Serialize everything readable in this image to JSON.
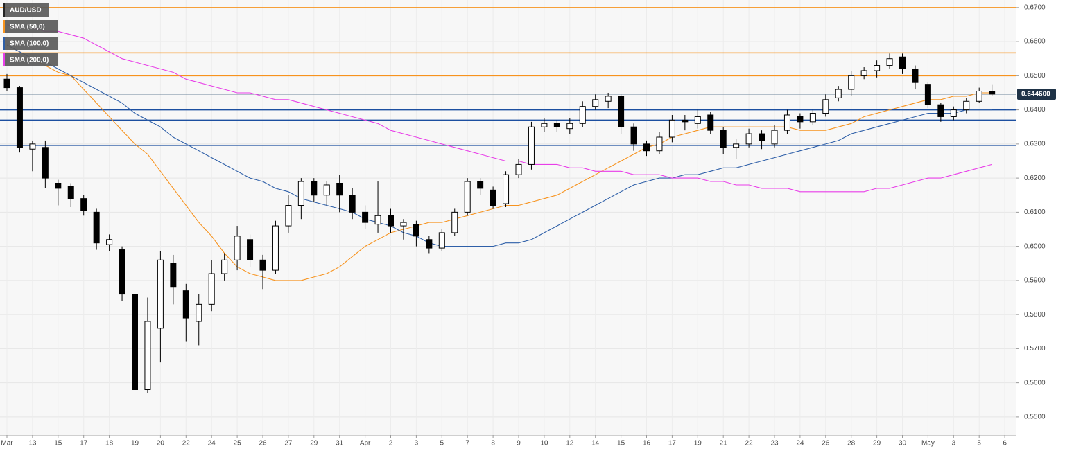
{
  "chart_data": {
    "type": "candlestick",
    "title": "AUD/USD",
    "categories": [
      "Mar",
      null,
      "13",
      null,
      "15",
      null,
      "17",
      null,
      "18",
      null,
      "19",
      null,
      "20",
      null,
      "22",
      null,
      "24",
      null,
      "25",
      null,
      "26",
      null,
      "27",
      null,
      "29",
      null,
      "31",
      null,
      "Apr",
      null,
      "2",
      null,
      "3",
      null,
      "5",
      null,
      "7",
      null,
      "8",
      null,
      "9",
      null,
      "10",
      null,
      "12",
      null,
      "14",
      null,
      "15",
      null,
      "16",
      null,
      "17",
      null,
      "19",
      null,
      "21",
      null,
      "22",
      null,
      "23",
      null,
      "24",
      null,
      "26",
      null,
      "28",
      null,
      "29",
      null,
      "30",
      null,
      "May",
      null,
      "3",
      null,
      "5",
      null,
      "6"
    ],
    "open": [
      0.649,
      0.6465,
      0.6285,
      0.629,
      0.6185,
      0.6175,
      0.614,
      0.61,
      0.6005,
      0.599,
      0.586,
      0.558,
      0.576,
      0.595,
      0.587,
      0.578,
      0.583,
      0.592,
      0.596,
      0.602,
      0.596,
      0.593,
      0.606,
      0.612,
      0.619,
      0.615,
      0.6185,
      0.615,
      0.61,
      0.6065,
      0.609,
      0.606,
      0.6065,
      0.602,
      0.5995,
      0.604,
      0.61,
      0.619,
      0.6165,
      0.6125,
      0.621,
      0.624,
      0.635,
      0.636,
      0.6345,
      0.636,
      0.641,
      0.6425,
      0.644,
      0.635,
      0.63,
      0.628,
      0.632,
      0.637,
      0.636,
      0.6385,
      0.634,
      0.629,
      0.63,
      0.633,
      0.63,
      0.634,
      0.638,
      0.6365,
      0.639,
      0.6435,
      0.646,
      0.65,
      0.6515,
      0.653,
      0.6555,
      0.652,
      0.6475,
      0.6415,
      0.638,
      0.64,
      0.6425,
      0.6455,
      null
    ],
    "high": [
      0.6505,
      0.647,
      0.631,
      0.631,
      0.6195,
      0.6185,
      0.615,
      0.611,
      0.6035,
      0.6,
      0.587,
      0.585,
      0.5985,
      0.5975,
      0.589,
      0.586,
      0.596,
      0.598,
      0.606,
      0.6035,
      0.5975,
      0.6075,
      0.615,
      0.62,
      0.62,
      0.619,
      0.621,
      0.617,
      0.612,
      0.619,
      0.611,
      0.608,
      0.6075,
      0.603,
      0.605,
      0.611,
      0.62,
      0.62,
      0.6175,
      0.622,
      0.6255,
      0.6365,
      0.6375,
      0.637,
      0.6375,
      0.6425,
      0.6445,
      0.645,
      0.6445,
      0.636,
      0.631,
      0.6335,
      0.6385,
      0.6385,
      0.64,
      0.6395,
      0.635,
      0.6315,
      0.6345,
      0.634,
      0.6355,
      0.64,
      0.639,
      0.64,
      0.6445,
      0.647,
      0.6515,
      0.6525,
      0.6545,
      0.6565,
      0.6565,
      0.653,
      0.648,
      0.642,
      0.641,
      0.6435,
      0.6465,
      0.6475,
      null
    ],
    "low": [
      0.6455,
      0.6275,
      0.622,
      0.617,
      0.612,
      0.6115,
      0.609,
      0.599,
      0.5985,
      0.584,
      0.551,
      0.557,
      0.566,
      0.583,
      0.572,
      0.571,
      0.581,
      0.59,
      0.593,
      0.594,
      0.5875,
      0.592,
      0.604,
      0.608,
      0.613,
      0.612,
      0.61,
      0.608,
      0.605,
      0.604,
      0.604,
      0.602,
      0.6,
      0.598,
      0.5985,
      0.603,
      0.609,
      0.615,
      0.611,
      0.6115,
      0.62,
      0.6225,
      0.6335,
      0.6335,
      0.633,
      0.635,
      0.64,
      0.6405,
      0.633,
      0.628,
      0.6265,
      0.627,
      0.6305,
      0.634,
      0.6345,
      0.633,
      0.627,
      0.6255,
      0.629,
      0.6285,
      0.629,
      0.633,
      0.6345,
      0.6355,
      0.638,
      0.6425,
      0.644,
      0.649,
      0.6495,
      0.652,
      0.6505,
      0.646,
      0.6405,
      0.6365,
      0.637,
      0.639,
      0.642,
      0.644,
      null
    ],
    "close": [
      0.6465,
      0.629,
      0.63,
      0.62,
      0.617,
      0.614,
      0.6105,
      0.601,
      0.602,
      0.586,
      0.558,
      0.578,
      0.596,
      0.588,
      0.579,
      0.583,
      0.592,
      0.596,
      0.603,
      0.596,
      0.593,
      0.606,
      0.612,
      0.619,
      0.615,
      0.618,
      0.615,
      0.61,
      0.607,
      0.609,
      0.606,
      0.607,
      0.603,
      0.5995,
      0.604,
      0.61,
      0.619,
      0.617,
      0.612,
      0.621,
      0.624,
      0.635,
      0.636,
      0.635,
      0.636,
      0.641,
      0.643,
      0.644,
      0.635,
      0.63,
      0.628,
      0.632,
      0.637,
      0.6365,
      0.638,
      0.634,
      0.629,
      0.63,
      0.633,
      0.631,
      0.634,
      0.6385,
      0.6365,
      0.639,
      0.643,
      0.646,
      0.65,
      0.6515,
      0.653,
      0.655,
      0.652,
      0.648,
      0.6415,
      0.638,
      0.64,
      0.6425,
      0.6455,
      0.6446,
      null
    ],
    "up_color": "#ffffff",
    "down_color": "#000000",
    "series": [
      {
        "name": "SMA (50,0)",
        "color": "#f7931e",
        "values": [
          0.659,
          0.657,
          0.655,
          0.653,
          0.651,
          0.65,
          0.646,
          0.642,
          0.638,
          0.634,
          0.63,
          0.627,
          0.622,
          0.617,
          0.612,
          0.607,
          0.603,
          0.598,
          0.594,
          0.592,
          0.591,
          0.59,
          0.59,
          0.59,
          0.591,
          0.592,
          0.594,
          0.597,
          0.6,
          0.602,
          0.604,
          0.605,
          0.606,
          0.607,
          0.607,
          0.608,
          0.609,
          0.61,
          0.611,
          0.612,
          0.612,
          0.613,
          0.614,
          0.615,
          0.617,
          0.619,
          0.621,
          0.623,
          0.625,
          0.627,
          0.629,
          0.63,
          0.632,
          0.633,
          0.634,
          0.635,
          0.635,
          0.635,
          0.635,
          0.635,
          0.635,
          0.635,
          0.634,
          0.634,
          0.634,
          0.635,
          0.636,
          0.638,
          0.639,
          0.64,
          0.641,
          0.642,
          0.643,
          0.643,
          0.644,
          0.644,
          0.645,
          0.645,
          null
        ]
      },
      {
        "name": "SMA (100,0)",
        "color": "#2e5fa8",
        "values": [
          0.659,
          0.657,
          0.655,
          0.654,
          0.652,
          0.65,
          0.648,
          0.646,
          0.644,
          0.642,
          0.639,
          0.637,
          0.635,
          0.632,
          0.63,
          0.628,
          0.626,
          0.624,
          0.622,
          0.62,
          0.619,
          0.617,
          0.616,
          0.614,
          0.613,
          0.612,
          0.611,
          0.61,
          0.608,
          0.607,
          0.606,
          0.604,
          0.603,
          0.601,
          0.6,
          0.6,
          0.6,
          0.6,
          0.6,
          0.601,
          0.601,
          0.602,
          0.604,
          0.606,
          0.608,
          0.61,
          0.612,
          0.614,
          0.616,
          0.618,
          0.619,
          0.62,
          0.62,
          0.621,
          0.621,
          0.622,
          0.623,
          0.623,
          0.624,
          0.625,
          0.626,
          0.627,
          0.628,
          0.629,
          0.63,
          0.631,
          0.633,
          0.634,
          0.635,
          0.636,
          0.637,
          0.638,
          0.639,
          0.639,
          0.639,
          0.64,
          0.64,
          0.64,
          null
        ]
      },
      {
        "name": "SMA (200,0)",
        "color": "#e83ee8",
        "values": [
          0.665,
          0.664,
          0.664,
          0.663,
          0.663,
          0.662,
          0.661,
          0.659,
          0.657,
          0.655,
          0.654,
          0.653,
          0.652,
          0.651,
          0.649,
          0.648,
          0.647,
          0.646,
          0.645,
          0.645,
          0.644,
          0.643,
          0.643,
          0.642,
          0.641,
          0.64,
          0.639,
          0.638,
          0.637,
          0.636,
          0.634,
          0.633,
          0.632,
          0.631,
          0.63,
          0.629,
          0.628,
          0.627,
          0.626,
          0.625,
          0.625,
          0.624,
          0.624,
          0.624,
          0.623,
          0.623,
          0.622,
          0.622,
          0.622,
          0.621,
          0.621,
          0.621,
          0.62,
          0.62,
          0.62,
          0.619,
          0.619,
          0.618,
          0.618,
          0.617,
          0.617,
          0.617,
          0.616,
          0.616,
          0.616,
          0.616,
          0.616,
          0.616,
          0.617,
          0.617,
          0.618,
          0.619,
          0.62,
          0.62,
          0.621,
          0.622,
          0.623,
          0.624,
          null
        ]
      }
    ],
    "levels": [
      {
        "value": 0.67,
        "color": "#f7931e"
      },
      {
        "value": 0.6567,
        "color": "#f7931e"
      },
      {
        "value": 0.65,
        "color": "#f7931e"
      },
      {
        "value": 0.64,
        "color": "#1c4fa0"
      },
      {
        "value": 0.637,
        "color": "#1c4fa0"
      },
      {
        "value": 0.6296,
        "color": "#1c4fa0"
      }
    ],
    "current_price": {
      "value": 0.6446,
      "label": "0.644600"
    },
    "ylim": [
      0.5447,
      0.6722
    ],
    "yticks": [
      {
        "value": 0.67,
        "label": "0.6700"
      },
      {
        "value": 0.66,
        "label": "0.6600"
      },
      {
        "value": 0.65,
        "label": "0.6500"
      },
      {
        "value": 0.64,
        "label": "0.6400"
      },
      {
        "value": 0.63,
        "label": "0.6300"
      },
      {
        "value": 0.62,
        "label": "0.6200"
      },
      {
        "value": 0.61,
        "label": "0.6100"
      },
      {
        "value": 0.6,
        "label": "0.6000"
      },
      {
        "value": 0.59,
        "label": "0.5900"
      },
      {
        "value": 0.58,
        "label": "0.5800"
      },
      {
        "value": 0.57,
        "label": "0.5700"
      },
      {
        "value": 0.56,
        "label": "0.5600"
      },
      {
        "value": 0.55,
        "label": "0.5500"
      }
    ],
    "grid": true
  }
}
